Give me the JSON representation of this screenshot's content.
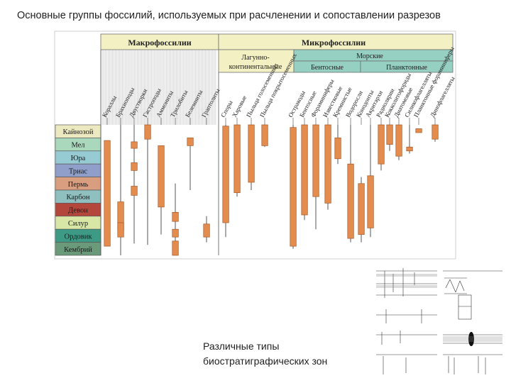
{
  "title": "Основные группы фоссилий, используемых при расчленении и сопоставлении разрезов",
  "header": {
    "macro": "Макрофоссилии",
    "micro": "Микрофоссилии",
    "lagoon_line1": "Лагунно-",
    "lagoon_line2": "континентальные",
    "marine": "Морские",
    "benthic": "Бентосные",
    "planktonic": "Планктонные"
  },
  "periods": [
    {
      "name": "Кайнозой",
      "color": "#ece8bf"
    },
    {
      "name": "Мел",
      "color": "#a9d8bc"
    },
    {
      "name": "Юра",
      "color": "#96cbd3"
    },
    {
      "name": "Триас",
      "color": "#8f9fc9"
    },
    {
      "name": "Пермь",
      "color": "#d89e7f"
    },
    {
      "name": "Карбон",
      "color": "#8fbfbf"
    },
    {
      "name": "Девон",
      "color": "#b3473c"
    },
    {
      "name": "Силур",
      "color": "#d8e6a6"
    },
    {
      "name": "Ордовик",
      "color": "#3d9a85"
    },
    {
      "name": "Кембрий",
      "color": "#6a9a7a"
    }
  ],
  "colors": {
    "bar": "#e48c4e",
    "bar_border": "#a4582a",
    "macro_header": "#f3f0c3",
    "lagoon_header": "#f3f0c3",
    "marine_header": "#96d0c2",
    "grid": "#8a8a8a"
  },
  "groups": [
    {
      "name": "Кораллы",
      "bars": [
        {
          "from": 1.2,
          "to": 9.3
        }
      ],
      "thin": [],
      "end": 0
    },
    {
      "name": "Брахиоподы",
      "bars": [
        {
          "from": 5.9,
          "to": 8.1
        },
        {
          "from": 7.5,
          "to": 8.6
        }
      ],
      "thin": [
        [
          0,
          10
        ]
      ],
      "end": 0
    },
    {
      "name": "Двустворки",
      "bars": [
        {
          "from": 1.3,
          "to": 1.8
        },
        {
          "from": 2.9,
          "to": 3.5
        },
        {
          "from": 4.7,
          "to": 5.4
        }
      ],
      "thin": [
        [
          0,
          9.1
        ]
      ],
      "end": 0
    },
    {
      "name": "Гастроподы",
      "bars": [
        {
          "from": 0,
          "to": 1.1
        }
      ],
      "thin": [
        [
          0,
          9.2
        ]
      ],
      "end": 0
    },
    {
      "name": "Аммониты",
      "bars": [
        {
          "from": 1.6,
          "to": 6.3
        }
      ],
      "thin": [
        [
          1.6,
          8.4
        ]
      ],
      "end": 1
    },
    {
      "name": "Трилобиты",
      "bars": [
        {
          "from": 6.7,
          "to": 7.4
        },
        {
          "from": 8,
          "to": 8.6
        },
        {
          "from": 8.9,
          "to": 10
        }
      ],
      "thin": [
        [
          4.5,
          10
        ]
      ],
      "end": 1
    },
    {
      "name": "Белемниты",
      "bars": [
        {
          "from": 1,
          "to": 1.6
        }
      ],
      "thin": [
        [
          1,
          5
        ]
      ],
      "end": 1
    },
    {
      "name": "Граптолиты",
      "bars": [
        {
          "from": 7.6,
          "to": 8.6
        }
      ],
      "thin": [
        [
          7,
          9
        ]
      ],
      "end": 1
    },
    {
      "name": "Споры",
      "bars": [
        {
          "from": 0.1,
          "to": 7.5
        }
      ],
      "thin": [
        [
          0,
          8.6
        ]
      ],
      "end": 0
    },
    {
      "name": "Харовые",
      "bars": [
        {
          "from": 0,
          "to": 5.2
        }
      ],
      "thin": [
        [
          0,
          5.5
        ]
      ],
      "end": 0
    },
    {
      "name": "Пыльца голосеменных",
      "bars": [
        {
          "from": 0,
          "to": 4.4
        }
      ],
      "thin": [
        [
          0,
          5
        ]
      ],
      "end": 0
    },
    {
      "name": "Пыльца покрытосеменных",
      "bars": [
        {
          "from": 0,
          "to": 1.6
        }
      ],
      "thin": [
        [
          0,
          1.7
        ]
      ],
      "end": 0
    },
    {
      "name": "Остракоды",
      "bars": [
        {
          "from": 0.2,
          "to": 9.3
        }
      ],
      "thin": [
        [
          0,
          9.5
        ]
      ],
      "end": 0
    },
    {
      "name": "Бентосные",
      "bars": [
        {
          "from": 0,
          "to": 6.9
        }
      ],
      "thin": [
        [
          0,
          7.3
        ]
      ],
      "end": 0
    },
    {
      "name": "Фораминиферы",
      "bars": [
        {
          "from": 0,
          "to": 5.5
        }
      ],
      "thin": [
        [
          0,
          8
        ]
      ],
      "end": 0
    },
    {
      "name": "Известковые",
      "bars": [
        {
          "from": 0,
          "to": 6
        }
      ],
      "thin": [
        [
          0,
          6.5
        ]
      ],
      "end": 0
    },
    {
      "name": "Кремнистые",
      "bars": [
        {
          "from": 1,
          "to": 2.6
        }
      ],
      "thin": [
        [
          0,
          3
        ]
      ],
      "end": 0
    },
    {
      "name": "Водоросли",
      "bars": [
        {
          "from": 3,
          "to": 8.7
        }
      ],
      "thin": [
        [
          0,
          9
        ]
      ],
      "end": 0
    },
    {
      "name": "Конодонты",
      "bars": [
        {
          "from": 4.5,
          "to": 8.4
        }
      ],
      "thin": [
        [
          4,
          9
        ]
      ],
      "end": 0
    },
    {
      "name": "Акритархи",
      "bars": [
        {
          "from": 3.9,
          "to": 7.9
        }
      ],
      "thin": [
        [
          0,
          8.6
        ]
      ],
      "end": 0
    },
    {
      "name": "Радиолярии",
      "bars": [
        {
          "from": 0,
          "to": 3
        }
      ],
      "thin": [
        [
          0,
          3.5
        ]
      ],
      "end": 0
    },
    {
      "name": "Кокколитофориды",
      "bars": [
        {
          "from": 0,
          "to": 1.5
        }
      ],
      "thin": [
        [
          0,
          2
        ]
      ],
      "end": 0
    },
    {
      "name": "Диатомовые",
      "bars": [
        {
          "from": 0,
          "to": 2.4
        }
      ],
      "thin": [
        [
          0,
          2.7
        ]
      ],
      "end": 0
    },
    {
      "name": "Силикофлагелляты",
      "bars": [
        {
          "from": 1.7,
          "to": 2
        }
      ],
      "thin": [
        [
          0,
          2.2
        ]
      ],
      "end": 0
    },
    {
      "name": "Планктонные фораминиферы",
      "bars": [
        {
          "from": 0.3,
          "to": 0.6
        }
      ],
      "thin": [],
      "end": 0
    },
    {
      "name": "Динофлагелляты",
      "bars": [
        {
          "from": 0,
          "to": 1.1
        }
      ],
      "thin": [
        [
          0,
          1.3
        ]
      ],
      "end": 0
    }
  ],
  "caption_lines": [
    "Различные типы",
    "биостратиграфических зон"
  ]
}
